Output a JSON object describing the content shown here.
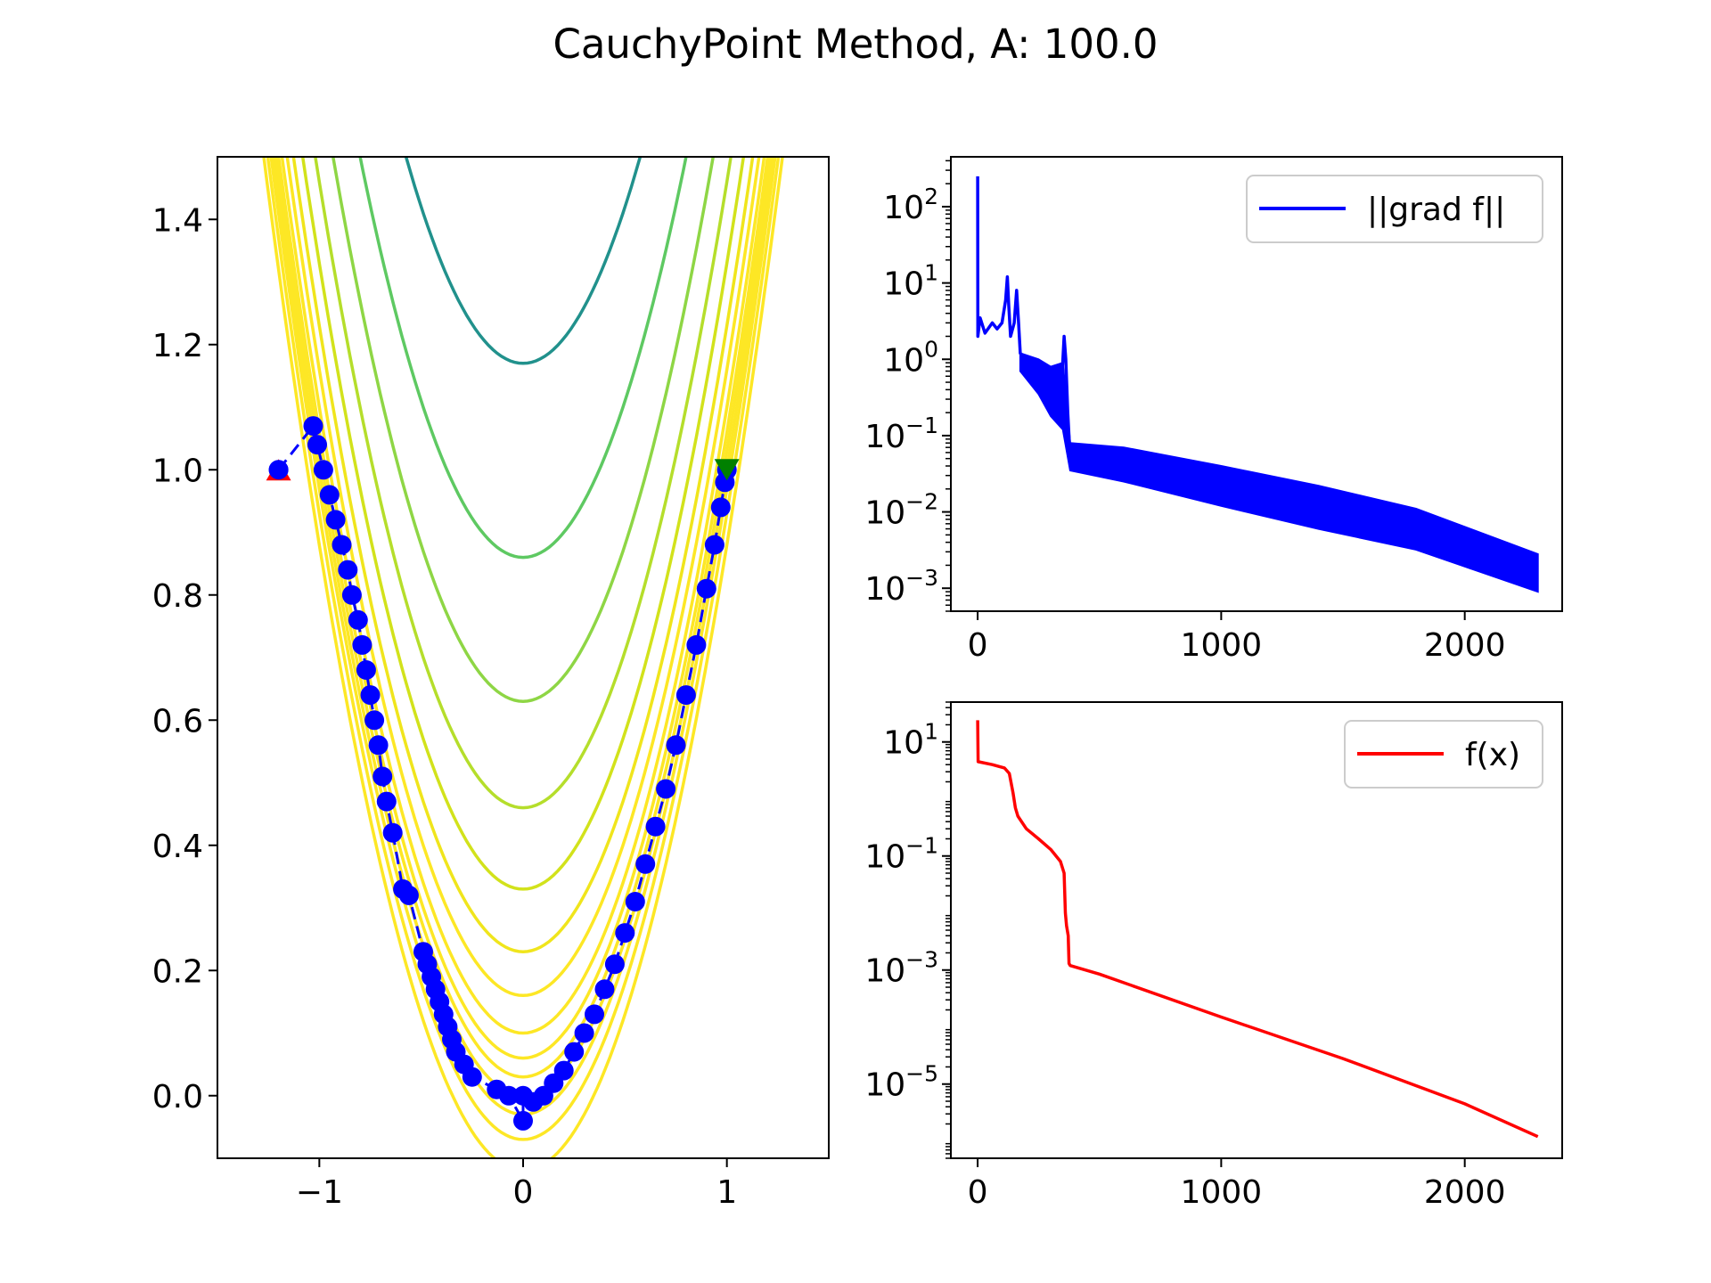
{
  "figure": {
    "title": "CauchyPoint Method, A: 100.0"
  },
  "chart_data": [
    {
      "type": "contour",
      "title": "",
      "xlabel": "",
      "ylabel": "",
      "xlim": [
        -1.5,
        1.5
      ],
      "ylim": [
        -0.1,
        1.5
      ],
      "x_ticks": [
        -1,
        0,
        1
      ],
      "x_tick_labels": [
        "−1",
        "0",
        "1"
      ],
      "y_ticks": [
        0.0,
        0.2,
        0.4,
        0.6,
        0.8,
        1.0,
        1.2,
        1.4
      ],
      "y_tick_labels": [
        "0.0",
        "0.2",
        "0.4",
        "0.6",
        "0.8",
        "1.0",
        "1.2",
        "1.4"
      ],
      "contour_levels": [
        {
          "c": -0.12,
          "color": "#fde725"
        },
        {
          "c": -0.07,
          "color": "#fde725"
        },
        {
          "c": -0.03,
          "color": "#fde725"
        },
        {
          "c": 0.0,
          "color": "#fde725"
        },
        {
          "c": 0.03,
          "color": "#fde725"
        },
        {
          "c": 0.06,
          "color": "#fde725"
        },
        {
          "c": 0.1,
          "color": "#fde725"
        },
        {
          "c": 0.16,
          "color": "#fde725"
        },
        {
          "c": 0.23,
          "color": "#f0e51c"
        },
        {
          "c": 0.33,
          "color": "#d2e21b"
        },
        {
          "c": 0.46,
          "color": "#b5de2b"
        },
        {
          "c": 0.63,
          "color": "#8ed645"
        },
        {
          "c": 0.86,
          "color": "#5ec962"
        },
        {
          "c": 1.17,
          "color": "#21918c"
        },
        {
          "c": 1.58,
          "color": "#2c728e"
        },
        {
          "c": 2.15,
          "color": "#440154"
        }
      ],
      "start_point": {
        "x": -1.2,
        "y": 1.0,
        "color": "#ff0000"
      },
      "end_point": {
        "x": 1.0,
        "y": 1.0,
        "color": "#008000"
      },
      "path_color": "#0000ff",
      "path": [
        [
          -1.2,
          1.0
        ],
        [
          -1.03,
          1.07
        ],
        [
          -1.01,
          1.04
        ],
        [
          -0.98,
          1.0
        ],
        [
          -0.95,
          0.96
        ],
        [
          -0.92,
          0.92
        ],
        [
          -0.89,
          0.88
        ],
        [
          -0.86,
          0.84
        ],
        [
          -0.84,
          0.8
        ],
        [
          -0.81,
          0.76
        ],
        [
          -0.79,
          0.72
        ],
        [
          -0.77,
          0.68
        ],
        [
          -0.75,
          0.64
        ],
        [
          -0.73,
          0.6
        ],
        [
          -0.71,
          0.56
        ],
        [
          -0.69,
          0.51
        ],
        [
          -0.67,
          0.47
        ],
        [
          -0.64,
          0.42
        ],
        [
          -0.59,
          0.33
        ],
        [
          -0.56,
          0.32
        ],
        [
          -0.49,
          0.23
        ],
        [
          -0.47,
          0.21
        ],
        [
          -0.45,
          0.19
        ],
        [
          -0.43,
          0.17
        ],
        [
          -0.41,
          0.15
        ],
        [
          -0.39,
          0.13
        ],
        [
          -0.37,
          0.11
        ],
        [
          -0.35,
          0.09
        ],
        [
          -0.33,
          0.07
        ],
        [
          -0.29,
          0.05
        ],
        [
          -0.25,
          0.03
        ],
        [
          -0.13,
          0.01
        ],
        [
          -0.07,
          0.0
        ],
        [
          0.0,
          -0.04
        ],
        [
          0.0,
          0.0
        ],
        [
          0.05,
          -0.01
        ],
        [
          0.1,
          0.0
        ],
        [
          0.15,
          0.02
        ],
        [
          0.2,
          0.04
        ],
        [
          0.25,
          0.07
        ],
        [
          0.3,
          0.1
        ],
        [
          0.35,
          0.13
        ],
        [
          0.4,
          0.17
        ],
        [
          0.45,
          0.21
        ],
        [
          0.5,
          0.26
        ],
        [
          0.55,
          0.31
        ],
        [
          0.6,
          0.37
        ],
        [
          0.65,
          0.43
        ],
        [
          0.7,
          0.49
        ],
        [
          0.75,
          0.56
        ],
        [
          0.8,
          0.64
        ],
        [
          0.85,
          0.72
        ],
        [
          0.9,
          0.81
        ],
        [
          0.94,
          0.88
        ],
        [
          0.97,
          0.94
        ],
        [
          0.99,
          0.98
        ],
        [
          1.0,
          1.0
        ]
      ]
    },
    {
      "type": "line",
      "title": "",
      "xlabel": "",
      "ylabel": "",
      "y_scale": "log",
      "xlim": [
        -110,
        2400
      ],
      "ylim": [
        0.0005,
        450
      ],
      "x_ticks": [
        0,
        1000,
        2000
      ],
      "x_tick_labels": [
        "0",
        "1000",
        "2000"
      ],
      "y_ticks": [
        0.001,
        0.01,
        0.1,
        1,
        10,
        100
      ],
      "y_tick_labels": [
        {
          "base": "10",
          "exp": "−3"
        },
        {
          "base": "10",
          "exp": "−2"
        },
        {
          "base": "10",
          "exp": "−1"
        },
        {
          "base": "10",
          "exp": "0"
        },
        {
          "base": "10",
          "exp": "1"
        },
        {
          "base": "10",
          "exp": "2"
        }
      ],
      "legend_position": "top-right",
      "series": [
        {
          "name": "||grad f||",
          "color": "#0000ff",
          "points": [
            [
              0,
              250
            ],
            [
              1,
              2.0
            ],
            [
              10,
              3.5
            ],
            [
              30,
              2.2
            ],
            [
              60,
              3.0
            ],
            [
              80,
              2.5
            ],
            [
              100,
              3.0
            ],
            [
              115,
              6.0
            ],
            [
              122,
              12.0
            ],
            [
              128,
              5.0
            ],
            [
              135,
              2.0
            ],
            [
              150,
              3.0
            ],
            [
              160,
              8.0
            ],
            [
              168,
              3.0
            ],
            [
              175,
              1.2
            ],
            [
              200,
              1.0
            ],
            [
              250,
              0.6
            ],
            [
              300,
              0.35
            ],
            [
              340,
              0.25
            ],
            [
              355,
              2.0
            ],
            [
              362,
              1.0
            ],
            [
              370,
              0.2
            ],
            [
              380,
              0.05
            ],
            [
              385,
              0.04
            ],
            [
              400,
              0.06
            ],
            [
              600,
              0.04
            ],
            [
              800,
              0.028
            ],
            [
              1000,
              0.02
            ],
            [
              1200,
              0.014
            ],
            [
              1400,
              0.01
            ],
            [
              1600,
              0.007
            ],
            [
              1800,
              0.005
            ],
            [
              2000,
              0.0035
            ],
            [
              2200,
              0.0026
            ],
            [
              2300,
              0.0023
            ]
          ],
          "band_upper": [
            [
              175,
              1.2
            ],
            [
              250,
              1.0
            ],
            [
              300,
              0.8
            ],
            [
              350,
              0.9
            ],
            [
              380,
              0.08
            ],
            [
              600,
              0.07
            ],
            [
              1000,
              0.04
            ],
            [
              1400,
              0.022
            ],
            [
              1800,
              0.011
            ],
            [
              2300,
              0.0028
            ]
          ],
          "band_lower": [
            [
              175,
              0.7
            ],
            [
              250,
              0.35
            ],
            [
              300,
              0.18
            ],
            [
              350,
              0.12
            ],
            [
              380,
              0.035
            ],
            [
              600,
              0.025
            ],
            [
              1000,
              0.012
            ],
            [
              1400,
              0.006
            ],
            [
              1800,
              0.0032
            ],
            [
              2300,
              0.0009
            ]
          ]
        }
      ]
    },
    {
      "type": "line",
      "title": "",
      "xlabel": "",
      "ylabel": "",
      "y_scale": "log",
      "xlim": [
        -110,
        2400
      ],
      "ylim": [
        5e-07,
        50
      ],
      "x_ticks": [
        0,
        1000,
        2000
      ],
      "x_tick_labels": [
        "0",
        "1000",
        "2000"
      ],
      "y_ticks": [
        1e-05,
        0.001,
        0.1,
        10
      ],
      "y_tick_labels": [
        {
          "base": "10",
          "exp": "−5"
        },
        {
          "base": "10",
          "exp": "−3"
        },
        {
          "base": "10",
          "exp": "−1"
        },
        {
          "base": "10",
          "exp": "1"
        }
      ],
      "legend_position": "top-right",
      "series": [
        {
          "name": "f(x)",
          "color": "#ff0000",
          "points": [
            [
              0,
              24
            ],
            [
              2,
              4.5
            ],
            [
              60,
              4.0
            ],
            [
              110,
              3.5
            ],
            [
              130,
              2.8
            ],
            [
              145,
              1.3
            ],
            [
              155,
              0.7
            ],
            [
              165,
              0.5
            ],
            [
              200,
              0.3
            ],
            [
              250,
              0.2
            ],
            [
              300,
              0.13
            ],
            [
              340,
              0.08
            ],
            [
              355,
              0.05
            ],
            [
              360,
              0.01
            ],
            [
              365,
              0.006
            ],
            [
              372,
              0.004
            ],
            [
              375,
              0.0013
            ],
            [
              380,
              0.0012
            ],
            [
              500,
              0.00085
            ],
            [
              1000,
              0.00015
            ],
            [
              1500,
              2.8e-05
            ],
            [
              2000,
              4.5e-06
            ],
            [
              2300,
              1.2e-06
            ]
          ]
        }
      ]
    }
  ]
}
